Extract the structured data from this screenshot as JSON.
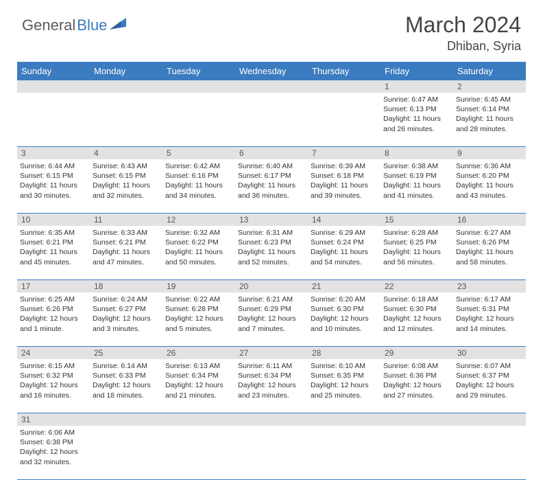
{
  "brand": {
    "part1": "General",
    "part2": "Blue"
  },
  "title": "March 2024",
  "location": "Dhiban, Syria",
  "colors": {
    "header_bg": "#3b7bbf",
    "header_text": "#ffffff",
    "daynum_bg": "#e2e2e2",
    "divider": "#3b7bbf",
    "body_text": "#333333",
    "brand_gray": "#5a5a5a",
    "brand_blue": "#3b7bbf"
  },
  "days_of_week": [
    "Sunday",
    "Monday",
    "Tuesday",
    "Wednesday",
    "Thursday",
    "Friday",
    "Saturday"
  ],
  "weeks": [
    {
      "nums": [
        "",
        "",
        "",
        "",
        "",
        "1",
        "2"
      ],
      "cells": [
        null,
        null,
        null,
        null,
        null,
        {
          "sunrise": "6:47 AM",
          "sunset": "6:13 PM",
          "daylight": "11 hours and 26 minutes."
        },
        {
          "sunrise": "6:45 AM",
          "sunset": "6:14 PM",
          "daylight": "11 hours and 28 minutes."
        }
      ]
    },
    {
      "nums": [
        "3",
        "4",
        "5",
        "6",
        "7",
        "8",
        "9"
      ],
      "cells": [
        {
          "sunrise": "6:44 AM",
          "sunset": "6:15 PM",
          "daylight": "11 hours and 30 minutes."
        },
        {
          "sunrise": "6:43 AM",
          "sunset": "6:15 PM",
          "daylight": "11 hours and 32 minutes."
        },
        {
          "sunrise": "6:42 AM",
          "sunset": "6:16 PM",
          "daylight": "11 hours and 34 minutes."
        },
        {
          "sunrise": "6:40 AM",
          "sunset": "6:17 PM",
          "daylight": "11 hours and 36 minutes."
        },
        {
          "sunrise": "6:39 AM",
          "sunset": "6:18 PM",
          "daylight": "11 hours and 39 minutes."
        },
        {
          "sunrise": "6:38 AM",
          "sunset": "6:19 PM",
          "daylight": "11 hours and 41 minutes."
        },
        {
          "sunrise": "6:36 AM",
          "sunset": "6:20 PM",
          "daylight": "11 hours and 43 minutes."
        }
      ]
    },
    {
      "nums": [
        "10",
        "11",
        "12",
        "13",
        "14",
        "15",
        "16"
      ],
      "cells": [
        {
          "sunrise": "6:35 AM",
          "sunset": "6:21 PM",
          "daylight": "11 hours and 45 minutes."
        },
        {
          "sunrise": "6:33 AM",
          "sunset": "6:21 PM",
          "daylight": "11 hours and 47 minutes."
        },
        {
          "sunrise": "6:32 AM",
          "sunset": "6:22 PM",
          "daylight": "11 hours and 50 minutes."
        },
        {
          "sunrise": "6:31 AM",
          "sunset": "6:23 PM",
          "daylight": "11 hours and 52 minutes."
        },
        {
          "sunrise": "6:29 AM",
          "sunset": "6:24 PM",
          "daylight": "11 hours and 54 minutes."
        },
        {
          "sunrise": "6:28 AM",
          "sunset": "6:25 PM",
          "daylight": "11 hours and 56 minutes."
        },
        {
          "sunrise": "6:27 AM",
          "sunset": "6:26 PM",
          "daylight": "11 hours and 58 minutes."
        }
      ]
    },
    {
      "nums": [
        "17",
        "18",
        "19",
        "20",
        "21",
        "22",
        "23"
      ],
      "cells": [
        {
          "sunrise": "6:25 AM",
          "sunset": "6:26 PM",
          "daylight": "12 hours and 1 minute."
        },
        {
          "sunrise": "6:24 AM",
          "sunset": "6:27 PM",
          "daylight": "12 hours and 3 minutes."
        },
        {
          "sunrise": "6:22 AM",
          "sunset": "6:28 PM",
          "daylight": "12 hours and 5 minutes."
        },
        {
          "sunrise": "6:21 AM",
          "sunset": "6:29 PM",
          "daylight": "12 hours and 7 minutes."
        },
        {
          "sunrise": "6:20 AM",
          "sunset": "6:30 PM",
          "daylight": "12 hours and 10 minutes."
        },
        {
          "sunrise": "6:18 AM",
          "sunset": "6:30 PM",
          "daylight": "12 hours and 12 minutes."
        },
        {
          "sunrise": "6:17 AM",
          "sunset": "6:31 PM",
          "daylight": "12 hours and 14 minutes."
        }
      ]
    },
    {
      "nums": [
        "24",
        "25",
        "26",
        "27",
        "28",
        "29",
        "30"
      ],
      "cells": [
        {
          "sunrise": "6:15 AM",
          "sunset": "6:32 PM",
          "daylight": "12 hours and 16 minutes."
        },
        {
          "sunrise": "6:14 AM",
          "sunset": "6:33 PM",
          "daylight": "12 hours and 18 minutes."
        },
        {
          "sunrise": "6:13 AM",
          "sunset": "6:34 PM",
          "daylight": "12 hours and 21 minutes."
        },
        {
          "sunrise": "6:11 AM",
          "sunset": "6:34 PM",
          "daylight": "12 hours and 23 minutes."
        },
        {
          "sunrise": "6:10 AM",
          "sunset": "6:35 PM",
          "daylight": "12 hours and 25 minutes."
        },
        {
          "sunrise": "6:08 AM",
          "sunset": "6:36 PM",
          "daylight": "12 hours and 27 minutes."
        },
        {
          "sunrise": "6:07 AM",
          "sunset": "6:37 PM",
          "daylight": "12 hours and 29 minutes."
        }
      ]
    },
    {
      "nums": [
        "31",
        "",
        "",
        "",
        "",
        "",
        ""
      ],
      "cells": [
        {
          "sunrise": "6:06 AM",
          "sunset": "6:38 PM",
          "daylight": "12 hours and 32 minutes."
        },
        null,
        null,
        null,
        null,
        null,
        null
      ]
    }
  ],
  "labels": {
    "sunrise": "Sunrise:",
    "sunset": "Sunset:",
    "daylight": "Daylight:"
  }
}
